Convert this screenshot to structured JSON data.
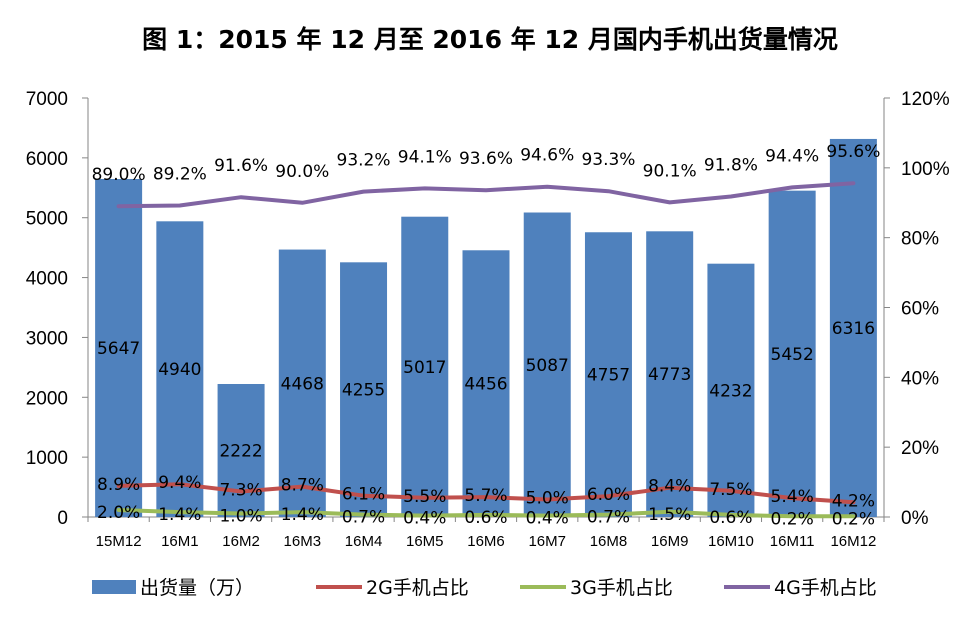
{
  "chart_data": {
    "type": "bar",
    "title": "图 1：2015 年 12 月至 2016 年 12 月国内手机出货量情况",
    "categories": [
      "15M12",
      "16M1",
      "16M2",
      "16M3",
      "16M4",
      "16M5",
      "16M6",
      "16M7",
      "16M8",
      "16M9",
      "16M10",
      "16M11",
      "16M12"
    ],
    "bar_series": {
      "name": "出货量（万）",
      "values": [
        5647,
        4940,
        2222,
        4468,
        4255,
        5017,
        4456,
        5087,
        4757,
        4773,
        4232,
        5452,
        6316
      ],
      "labels": [
        "5647",
        "4940",
        "2222",
        "4468",
        "4255",
        "5017",
        "4456",
        "5087",
        "4757",
        "4773",
        "4232",
        "5452",
        "6316"
      ],
      "color": "#4F81BD"
    },
    "line_series": [
      {
        "name": "2G手机占比",
        "color": "#C0504D",
        "values": [
          8.9,
          9.4,
          7.3,
          8.7,
          6.1,
          5.5,
          5.7,
          5.0,
          6.0,
          8.4,
          7.5,
          5.4,
          4.2
        ],
        "labels": [
          "8.9%",
          "9.4%",
          "7.3%",
          "8.7%",
          "6.1%",
          "5.5%",
          "5.7%",
          "5.0%",
          "6.0%",
          "8.4%",
          "7.5%",
          "5.4%",
          "4.2%"
        ]
      },
      {
        "name": "3G手机占比",
        "color": "#9BBB59",
        "values": [
          2.0,
          1.4,
          1.0,
          1.4,
          0.7,
          0.4,
          0.6,
          0.4,
          0.7,
          1.5,
          0.6,
          0.2,
          0.2
        ],
        "labels": [
          "2.0%",
          "1.4%",
          "1.0%",
          "1.4%",
          "0.7%",
          "0.4%",
          "0.6%",
          "0.4%",
          "0.7%",
          "1.5%",
          "0.6%",
          "0.2%",
          "0.2%"
        ]
      },
      {
        "name": "4G手机占比",
        "color": "#8064A2",
        "values": [
          89.0,
          89.2,
          91.6,
          90.0,
          93.2,
          94.1,
          93.6,
          94.6,
          93.3,
          90.1,
          91.8,
          94.4,
          95.6
        ],
        "labels": [
          "89.0%",
          "89.2%",
          "91.6%",
          "90.0%",
          "93.2%",
          "94.1%",
          "93.6%",
          "94.6%",
          "93.3%",
          "90.1%",
          "91.8%",
          "94.4%",
          "95.6%"
        ]
      }
    ],
    "y_left": {
      "min": 0,
      "max": 7000,
      "ticks": [
        "0",
        "1000",
        "2000",
        "3000",
        "4000",
        "5000",
        "6000",
        "7000"
      ]
    },
    "y_right": {
      "min": 0,
      "max": 120,
      "ticks": [
        "0%",
        "20%",
        "40%",
        "60%",
        "80%",
        "100%",
        "120%"
      ]
    },
    "grid": false,
    "legend_position": "bottom"
  }
}
